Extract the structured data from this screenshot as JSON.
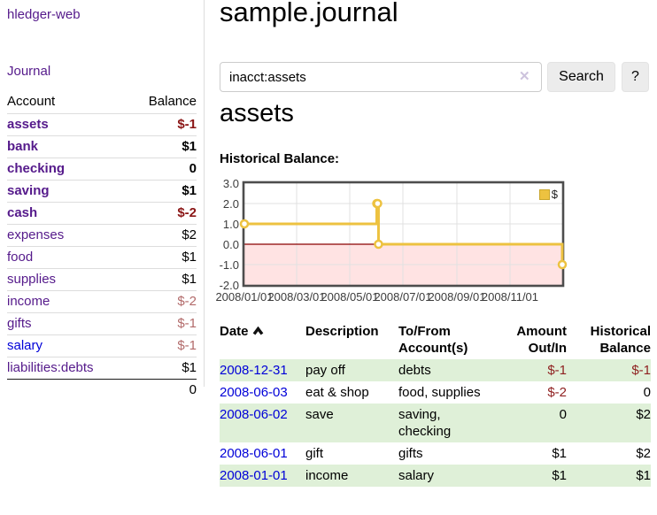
{
  "app": {
    "brand": "hledger-web",
    "nav_journal": "Journal"
  },
  "sidebar": {
    "header": {
      "account": "Account",
      "balance": "Balance"
    },
    "rows": [
      {
        "name": "assets",
        "balance": "$-1"
      },
      {
        "name": "bank",
        "balance": "$1"
      },
      {
        "name": "checking",
        "balance": "0"
      },
      {
        "name": "saving",
        "balance": "$1"
      },
      {
        "name": "cash",
        "balance": "$-2"
      },
      {
        "name": "expenses",
        "balance": "$2"
      },
      {
        "name": "food",
        "balance": "$1"
      },
      {
        "name": "supplies",
        "balance": "$1"
      },
      {
        "name": "income",
        "balance": "$-2"
      },
      {
        "name": "gifts",
        "balance": "$-1"
      },
      {
        "name": "salary",
        "balance": "$-1"
      },
      {
        "name": "liabilities:debts",
        "balance": "$1"
      }
    ],
    "total": "0"
  },
  "main": {
    "title": "sample.journal",
    "search": {
      "value": "inacct:assets",
      "clear_icon": "✕",
      "search_button": "Search",
      "help_button": "?"
    },
    "account_heading": "assets",
    "chart_heading": "Historical Balance:"
  },
  "chart_data": {
    "type": "line",
    "title": "Historical Balance:",
    "xlim": [
      "2008-01-01",
      "2008-12-31"
    ],
    "ylim": [
      -2,
      3
    ],
    "x_ticks": [
      "2008/01/01",
      "2008/03/01",
      "2008/05/01",
      "2008/07/01",
      "2008/09/01",
      "2008/11/01"
    ],
    "y_ticks": [
      "3.0",
      "2.0",
      "1.0",
      "0.0",
      "-1.0",
      "-2.0"
    ],
    "grid": true,
    "legend_position": "top-right",
    "series": [
      {
        "name": "$",
        "color": "#edc240",
        "step": true,
        "points": [
          [
            "2008-01-01",
            1
          ],
          [
            "2008-06-01",
            2
          ],
          [
            "2008-06-02",
            2
          ],
          [
            "2008-06-03",
            0
          ],
          [
            "2008-12-31",
            -1
          ]
        ]
      }
    ],
    "negative_region": {
      "below": 0,
      "fill": "rgba(255,0,0,0.11)",
      "line_color": "#8b0000"
    }
  },
  "register": {
    "headers": {
      "date": "Date",
      "description": "Description",
      "accounts": "To/From Account(s)",
      "amount": "Amount Out/In",
      "balance": "Historical Balance"
    },
    "rows": [
      {
        "date": "2008-12-31",
        "description": "pay off",
        "accounts": "debts",
        "amount": "$-1",
        "balance": "$-1"
      },
      {
        "date": "2008-06-03",
        "description": "eat & shop",
        "accounts": "food, supplies",
        "amount": "$-2",
        "balance": "0"
      },
      {
        "date": "2008-06-02",
        "description": "save",
        "accounts": "saving, checking",
        "amount": "0",
        "balance": "$2"
      },
      {
        "date": "2008-06-01",
        "description": "gift",
        "accounts": "gifts",
        "amount": "$1",
        "balance": "$2"
      },
      {
        "date": "2008-01-01",
        "description": "income",
        "accounts": "salary",
        "amount": "$1",
        "balance": "$1"
      }
    ]
  }
}
